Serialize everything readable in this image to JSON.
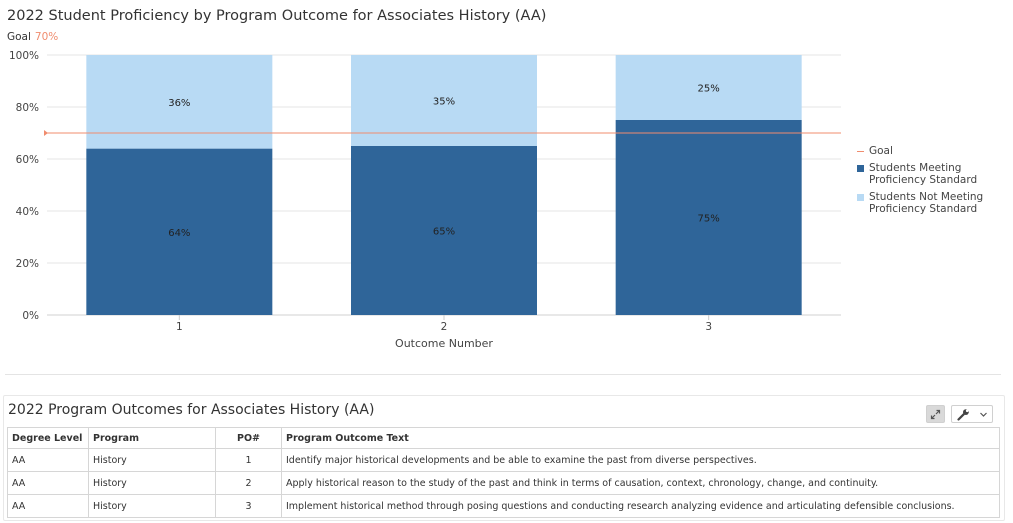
{
  "chart_data": {
    "type": "bar",
    "stacked": true,
    "title": "2022 Student Proficiency by Program Outcome for Associates History (AA)",
    "goal_label": "Goal",
    "goal_value_label": "70%",
    "goal": 70,
    "categories": [
      "1",
      "2",
      "3"
    ],
    "series": [
      {
        "name": "Students Meeting Proficiency Standard",
        "values": [
          64,
          65,
          75
        ],
        "labels": [
          "64%",
          "65%",
          "75%"
        ],
        "color": "#2f6599"
      },
      {
        "name": "Students Not Meeting Proficiency Standard",
        "values": [
          36,
          35,
          25
        ],
        "labels": [
          "36%",
          "35%",
          "25%"
        ],
        "color": "#b8daf4"
      }
    ],
    "goal_series_name": "Goal",
    "goal_color": "#f08c6e",
    "xlabel": "Outcome Number",
    "ylabel": "",
    "ylim": [
      0,
      100
    ],
    "yticks": [
      "0%",
      "20%",
      "40%",
      "60%",
      "80%",
      "100%"
    ],
    "grid": true,
    "legend_position": "right"
  },
  "table": {
    "title": "2022 Program Outcomes for Associates History (AA)",
    "headers": [
      "Degree Level",
      "Program",
      "PO#",
      "Program Outcome Text"
    ],
    "rows": [
      [
        "AA",
        "History",
        "1",
        "Identify major historical developments and be able to examine the past from diverse perspectives."
      ],
      [
        "AA",
        "History",
        "2",
        "Apply historical reason to the study of the past and think in terms of causation, context, chronology, change, and continuity."
      ],
      [
        "AA",
        "History",
        "3",
        "Implement historical method through posing questions and conducting research analyzing evidence and articulating defensible conclusions."
      ]
    ]
  },
  "toolbar": {
    "expand_icon": "expand-icon",
    "wrench_icon": "wrench-icon",
    "chevron_icon": "chevron-down-icon"
  }
}
